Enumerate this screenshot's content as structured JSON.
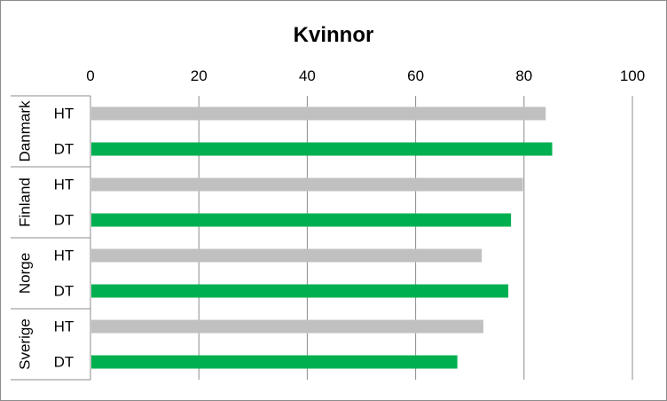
{
  "chart_data": {
    "type": "bar",
    "orientation": "horizontal",
    "title": "Kvinnor",
    "xlim": [
      0,
      100
    ],
    "x_ticks": [
      "0",
      "20",
      "40",
      "60",
      "80",
      "100"
    ],
    "x_axis_position": "top",
    "grid": true,
    "groups": [
      {
        "name": "Danmark",
        "bars": [
          {
            "label": "HT",
            "value": 84,
            "color": "#c0c0c0"
          },
          {
            "label": "DT",
            "value": 85.2,
            "color": "#00b050"
          }
        ]
      },
      {
        "name": "Finland",
        "bars": [
          {
            "label": "HT",
            "value": 79.8,
            "color": "#c0c0c0"
          },
          {
            "label": "DT",
            "value": 77.6,
            "color": "#00b050"
          }
        ]
      },
      {
        "name": "Norge",
        "bars": [
          {
            "label": "HT",
            "value": 72.2,
            "color": "#c0c0c0"
          },
          {
            "label": "DT",
            "value": 77.1,
            "color": "#00b050"
          }
        ]
      },
      {
        "name": "Sverige",
        "bars": [
          {
            "label": "HT",
            "value": 72.5,
            "color": "#c0c0c0"
          },
          {
            "label": "DT",
            "value": 67.7,
            "color": "#00b050"
          }
        ]
      }
    ]
  }
}
